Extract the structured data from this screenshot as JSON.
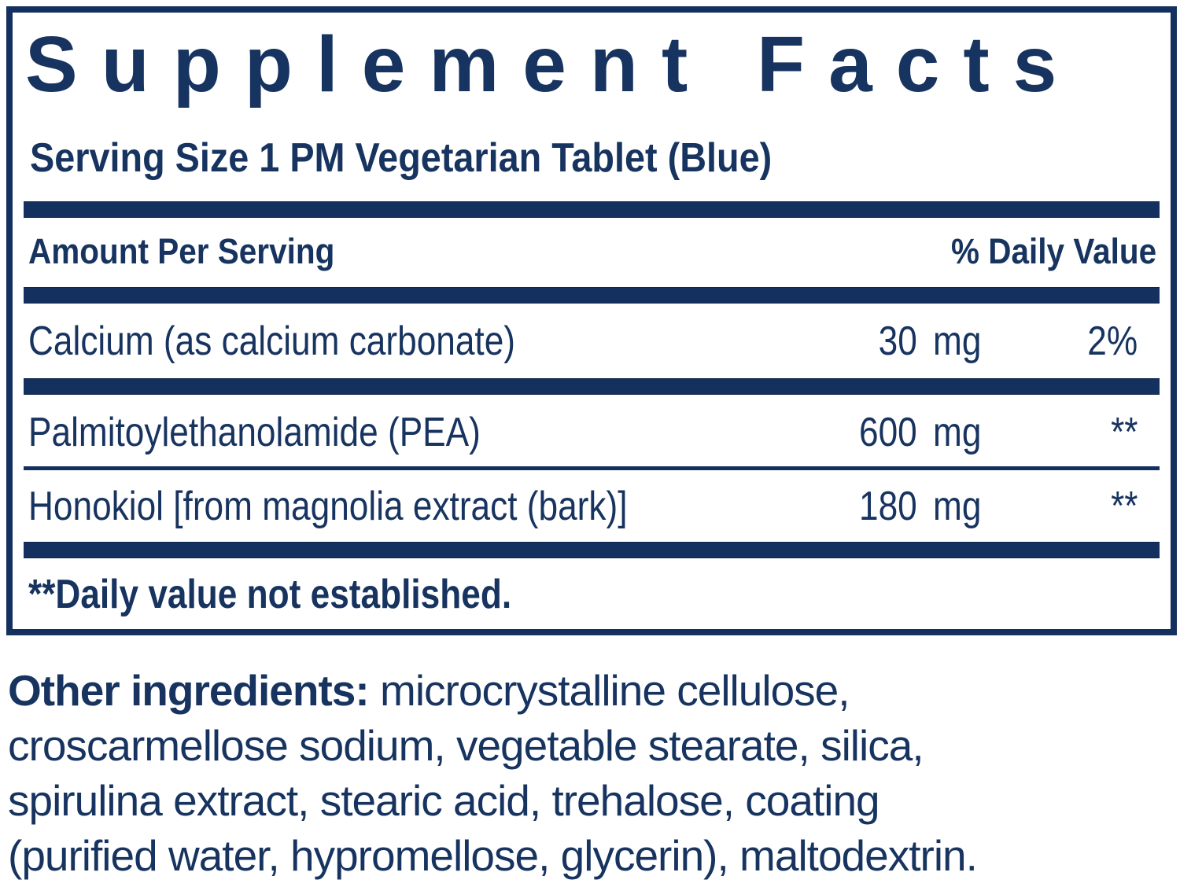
{
  "colors": {
    "navy": "#14305e",
    "text": "#17335f",
    "background": "#ffffff"
  },
  "panel": {
    "title": "Supplement Facts",
    "serving_size": "Serving Size 1 PM Vegetarian Tablet (Blue)",
    "columns": {
      "amount_header": "Amount Per Serving",
      "daily_value_header": "% Daily Value"
    },
    "rows": [
      {
        "name": "Calcium (as calcium carbonate)",
        "amount_value": "30",
        "amount_unit": "mg",
        "daily_value": "2%"
      },
      {
        "name": "Palmitoylethanolamide (PEA)",
        "amount_value": "600",
        "amount_unit": "mg",
        "daily_value": "**"
      },
      {
        "name": "Honokiol [from magnolia extract (bark)]",
        "amount_value": "180",
        "amount_unit": "mg",
        "daily_value": "**"
      }
    ],
    "footnote": "**Daily value not established."
  },
  "other_ingredients": {
    "label": "Other ingredients:",
    "line1_rest": " microcrystalline cellulose,",
    "line2": "croscarmellose sodium, vegetable stearate, silica,",
    "line3": "spirulina extract, stearic acid, trehalose, coating",
    "line4": "(purified water, hypromellose, glycerin), maltodextrin."
  }
}
